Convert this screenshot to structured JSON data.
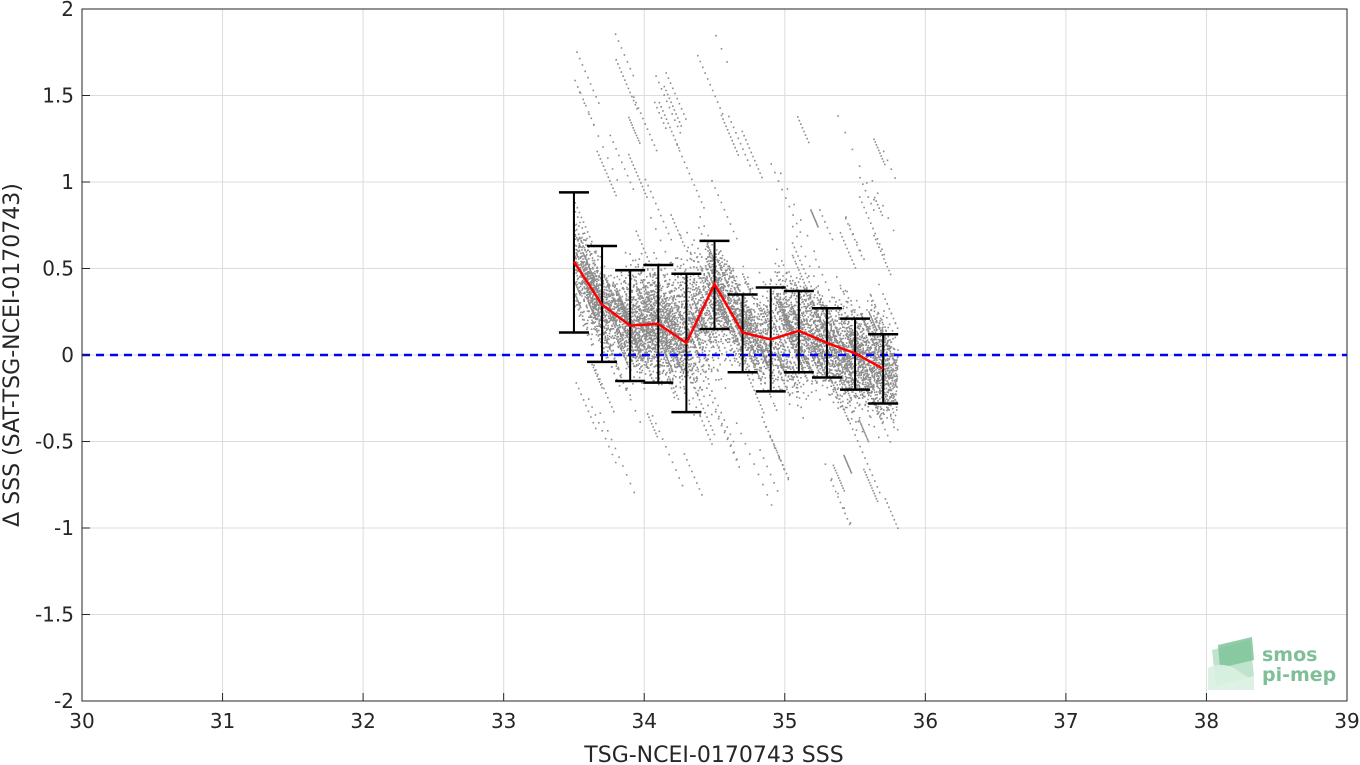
{
  "chart_data": {
    "type": "scatter",
    "xlabel": "TSG-NCEI-0170743 SSS",
    "ylabel": "Δ SSS (SAT-TSG-NCEI-0170743)",
    "xlim": [
      30,
      39
    ],
    "ylim": [
      -2,
      2
    ],
    "x_ticks": [
      "30",
      "31",
      "32",
      "33",
      "34",
      "35",
      "36",
      "37",
      "38",
      "39"
    ],
    "y_ticks": [
      "2",
      "1.5",
      "1",
      "0.5",
      "0",
      "-0.5",
      "-1",
      "-1.5",
      "-2"
    ],
    "grid": true,
    "scatter_cloud": {
      "color": "#8c8c8c",
      "x_range": [
        33.5,
        35.8
      ],
      "y_range": [
        -1.02,
        1.88
      ]
    },
    "mean_line": {
      "color": "#ff0000",
      "x": [
        33.5,
        33.7,
        33.9,
        34.1,
        34.3,
        34.5,
        34.7,
        34.9,
        35.1,
        35.3,
        35.5,
        35.7
      ],
      "y": [
        0.54,
        0.29,
        0.17,
        0.18,
        0.07,
        0.41,
        0.13,
        0.09,
        0.14,
        0.07,
        0.01,
        -0.08
      ]
    },
    "error_bars": {
      "color": "#000000",
      "x": [
        33.5,
        33.7,
        33.9,
        34.1,
        34.3,
        34.5,
        34.7,
        34.9,
        35.1,
        35.3,
        35.5,
        35.7
      ],
      "lower": [
        0.13,
        -0.04,
        -0.15,
        -0.16,
        -0.33,
        0.15,
        -0.1,
        -0.21,
        -0.1,
        -0.13,
        -0.2,
        -0.28
      ],
      "upper": [
        0.94,
        0.63,
        0.49,
        0.52,
        0.47,
        0.66,
        0.35,
        0.39,
        0.37,
        0.27,
        0.21,
        0.12
      ]
    },
    "reference_line": {
      "y": 0,
      "color": "#0000ff",
      "style": "dashed"
    }
  },
  "logo": {
    "line1": "smos",
    "line2": "pi-mep"
  }
}
